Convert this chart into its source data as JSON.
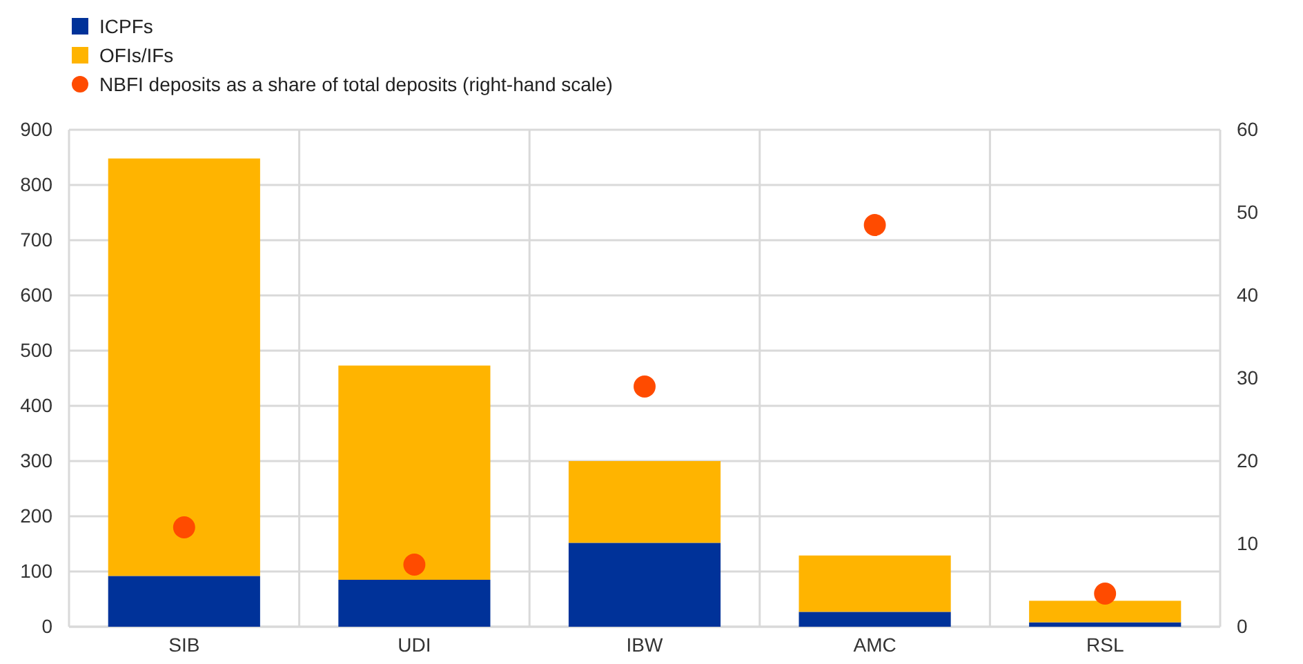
{
  "chart_data": {
    "type": "bar",
    "stacked": true,
    "categories": [
      "SIB",
      "UDI",
      "IBW",
      "AMC",
      "RSL"
    ],
    "series": [
      {
        "name": "ICPFs",
        "color": "#003299",
        "values": [
          92,
          85,
          152,
          27,
          8
        ]
      },
      {
        "name": "OFIs/IFs",
        "color": "#ffb400",
        "values": [
          756,
          388,
          148,
          102,
          39
        ]
      },
      {
        "name": "NBFI deposits as a share of total deposits (right-hand scale)",
        "type": "scatter",
        "axis": "y2",
        "color": "#ff4b00",
        "values": [
          12,
          7.5,
          29,
          48.5,
          4
        ]
      }
    ],
    "ylim": [
      0,
      900
    ],
    "yticks": [
      0,
      100,
      200,
      300,
      400,
      500,
      600,
      700,
      800,
      900
    ],
    "y2lim": [
      0,
      60
    ],
    "y2ticks": [
      0,
      10,
      20,
      30,
      40,
      50,
      60
    ],
    "grid": true,
    "legend": "top left",
    "marker": "circle"
  }
}
